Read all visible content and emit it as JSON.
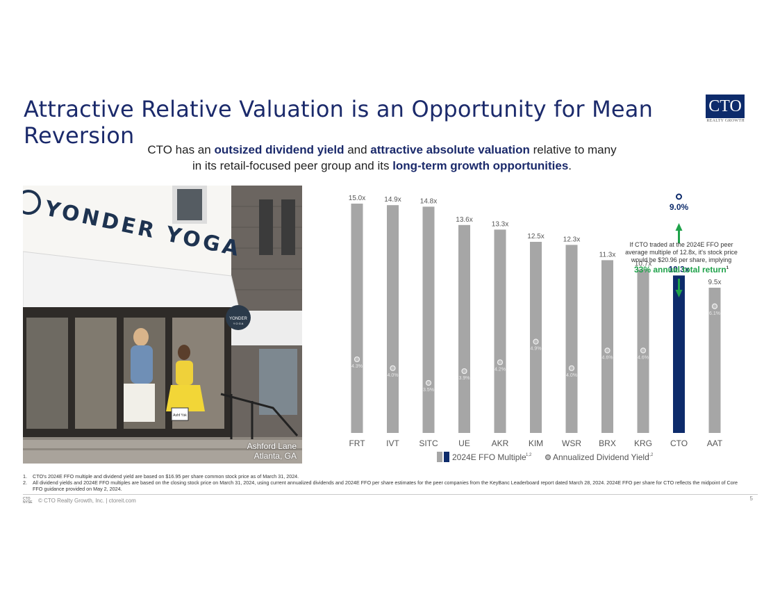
{
  "title": "Attractive Relative Valuation is an Opportunity for Mean Reversion",
  "logo": {
    "text": "CTO",
    "sub": "REALTY GROWTH"
  },
  "subtitle": {
    "t1": "CTO has an ",
    "b1": "outsized dividend yield",
    "t2": " and ",
    "b2": "attractive absolute valuation",
    "t3": " relative to many",
    "t4": "in its retail-focused peer group and its ",
    "b3": "long-term growth opportunities",
    "t5": "."
  },
  "photo": {
    "sign_text": "YONDER YOGA",
    "round_sign_text": "YONDER",
    "round_sign_sub": "Y O G A",
    "bag_text": "Ashf Ysk",
    "caption_line1": "Ashford Lane",
    "caption_line2": "Atlanta, GA"
  },
  "colors": {
    "peer_bar": "#a6a6a6",
    "cto_bar": "#0d2b6b",
    "accent_green": "#1fa24a",
    "title_blue": "#1b2a6b"
  },
  "chart_data": {
    "type": "bar",
    "categories": [
      "FRT",
      "IVT",
      "SITC",
      "UE",
      "AKR",
      "KIM",
      "WSR",
      "BRX",
      "KRG",
      "CTO",
      "AAT"
    ],
    "series": [
      {
        "name": "2024E FFO Multiple",
        "values": [
          15.0,
          14.9,
          14.8,
          13.6,
          13.3,
          12.5,
          12.3,
          11.3,
          10.7,
          10.3,
          9.5
        ],
        "labels": [
          "15.0x",
          "14.9x",
          "14.8x",
          "13.6x",
          "13.3x",
          "12.5x",
          "12.3x",
          "11.3x",
          "10.7x",
          "10.3x",
          "9.5x"
        ]
      },
      {
        "name": "Annualized Dividend Yield",
        "values": [
          4.3,
          4.0,
          3.5,
          3.9,
          4.2,
          4.9,
          4.0,
          4.6,
          4.6,
          9.0,
          6.1
        ],
        "labels": [
          "4.3%",
          "4.0%",
          "3.5%",
          "3.9%",
          "4.2%",
          "4.9%",
          "4.0%",
          "4.6%",
          "4.6%",
          "9.0%",
          "6.1%"
        ]
      }
    ],
    "legend": [
      {
        "label": "2024E FFO Multiple",
        "sup": "1,2"
      },
      {
        "label": "Annualized Dividend Yield",
        "sup": "1,2"
      }
    ]
  },
  "annotation": {
    "text": "If CTO traded at the 2024E FFO peer average multiple of 12.8x, it's stock price would be $20.96 per share, implying",
    "return": "33% annual total return",
    "sup": "1"
  },
  "footnotes": [
    {
      "num": "1.",
      "text": "CTO's 2024E FFO multiple and dividend yield are based on $16.95 per share common stock price as of March 31, 2024."
    },
    {
      "num": "2.",
      "text": "All dividend yields and 2024E FFO multiples are based on the closing stock price on March 31, 2024, using current annualized dividends and 2024E FFO per share estimates for the peer companies from the KeyBanc Leaderboard report dated March 28, 2024. 2024E FFO per share for CTO reflects the midpoint of Core FFO guidance provided on May 2, 2024."
    }
  ],
  "footer": {
    "mini_logo": "CTO",
    "exchange": "NYSE",
    "text": "© CTO Realty Growth, Inc. | ctoreit.com",
    "page": "5"
  }
}
